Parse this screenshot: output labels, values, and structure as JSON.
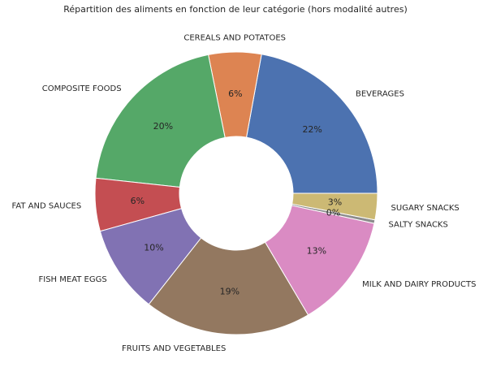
{
  "chart_data": {
    "type": "pie",
    "donut": true,
    "title": "Répartition des aliments en fonction de leur catégorie (hors modalité autres)",
    "categories": [
      "BEVERAGES",
      "CEREALS AND POTATOES",
      "COMPOSITE FOODS",
      "FAT AND SAUCES",
      "FISH MEAT EGGS",
      "FRUITS AND VEGETABLES",
      "MILK AND DAIRY PRODUCTS",
      "SALTY SNACKS",
      "SUGARY SNACKS"
    ],
    "values": [
      22,
      6,
      20,
      6,
      10,
      19,
      13,
      0.4,
      3
    ],
    "labels": [
      "22%",
      "6%",
      "20%",
      "6%",
      "10%",
      "19%",
      "13%",
      "0%",
      "3%"
    ],
    "colors": [
      "#4c72b0",
      "#dd8452",
      "#55a868",
      "#c44e52",
      "#8172b3",
      "#937860",
      "#da8bc3",
      "#8c8c8c",
      "#ccb974"
    ],
    "start_angle_deg": 0,
    "direction": "counterclockwise",
    "legend": "none"
  }
}
